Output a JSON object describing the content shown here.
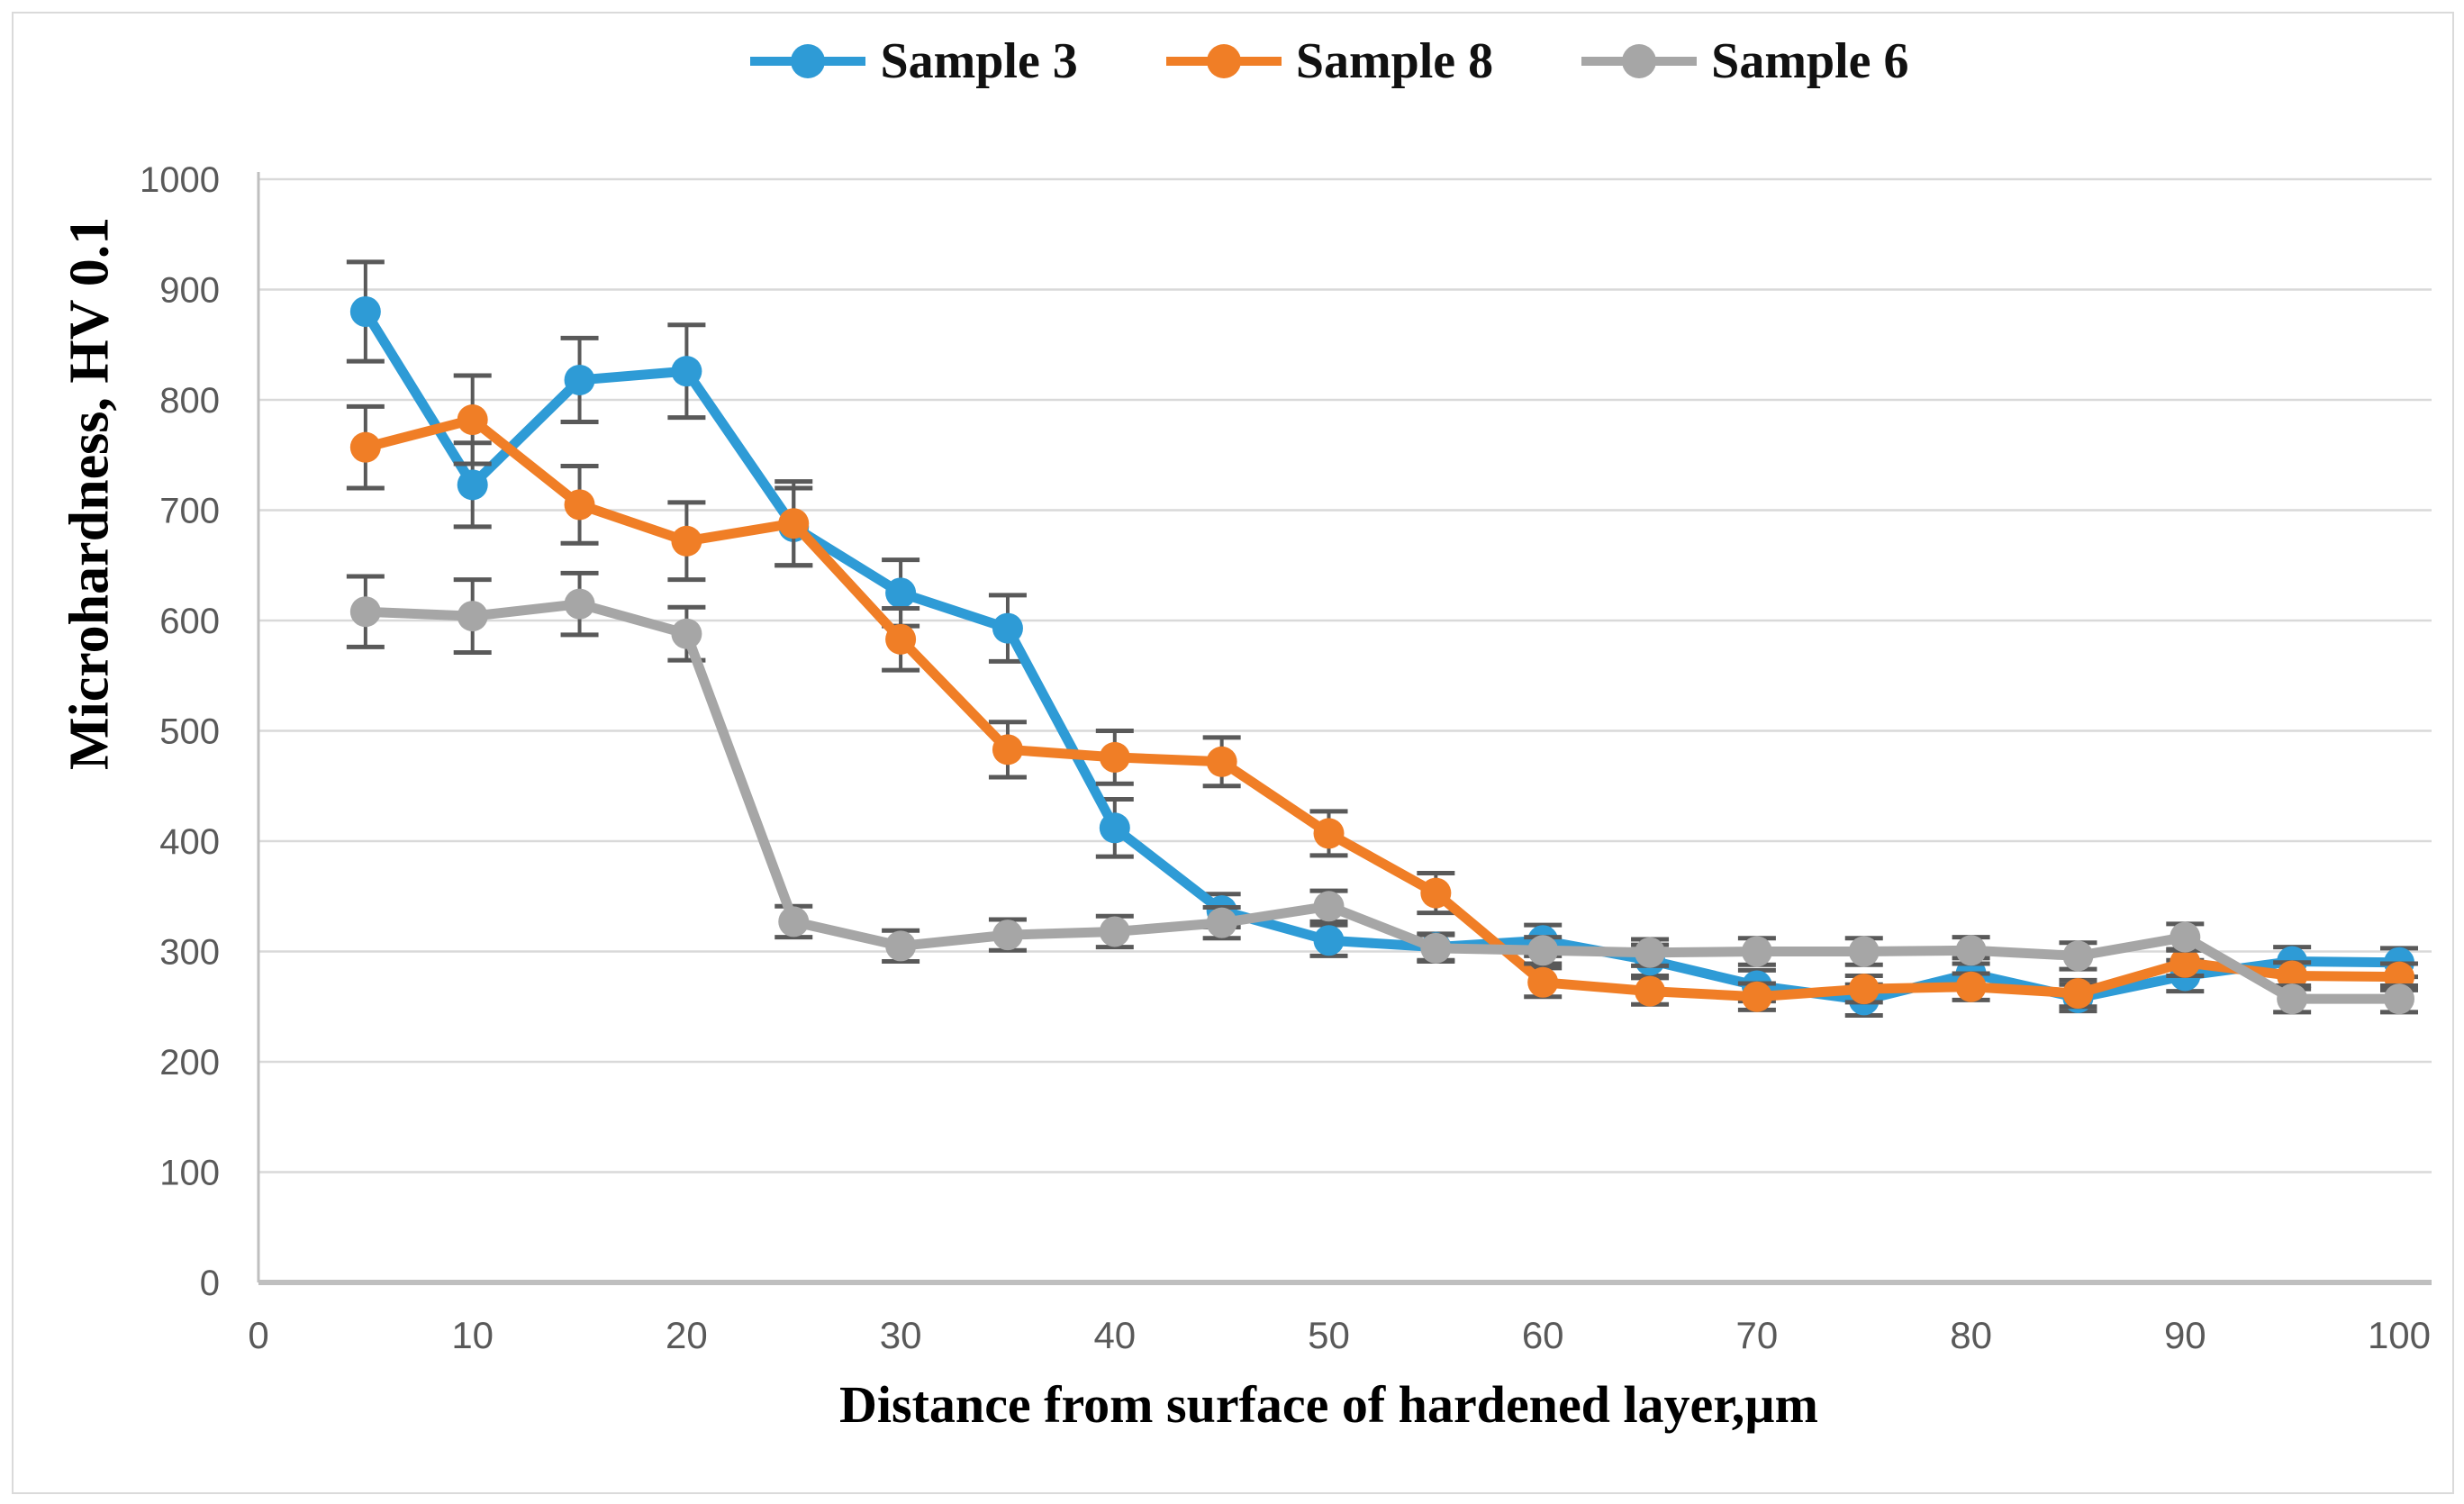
{
  "chart_data": {
    "type": "line",
    "title": "",
    "xlabel": "Distance from surface of hardened layer,µm",
    "ylabel": "Microhardness, HV 0.1",
    "xlim": [
      0,
      100
    ],
    "ylim": [
      0,
      1000
    ],
    "x_ticks": [
      0,
      10,
      20,
      30,
      40,
      50,
      60,
      70,
      80,
      90,
      100
    ],
    "y_ticks": [
      0,
      100,
      200,
      300,
      400,
      500,
      600,
      700,
      800,
      900,
      1000
    ],
    "grid": "horizontal",
    "legend_position": "top-center",
    "error_bars": true,
    "x": [
      5,
      10,
      15,
      20,
      25,
      30,
      35,
      40,
      45,
      50,
      55,
      60,
      65,
      70,
      75,
      80,
      85,
      90,
      95,
      100
    ],
    "series": [
      {
        "name": "Sample 3",
        "color": "#2E9BD6",
        "values": [
          880,
          723,
          818,
          826,
          685,
          625,
          593,
          412,
          337,
          310,
          304,
          310,
          292,
          269,
          256,
          280,
          258,
          278,
          291,
          290
        ],
        "errors": [
          45,
          38,
          38,
          42,
          35,
          30,
          30,
          26,
          15,
          14,
          12,
          14,
          14,
          14,
          14,
          14,
          12,
          14,
          13,
          13
        ]
      },
      {
        "name": "Sample 8",
        "color": "#F07E26",
        "values": [
          757,
          782,
          705,
          672,
          688,
          583,
          483,
          476,
          472,
          407,
          353,
          272,
          264,
          259,
          266,
          268,
          262,
          290,
          278,
          277
        ],
        "errors": [
          37,
          40,
          35,
          35,
          38,
          28,
          25,
          24,
          22,
          20,
          18,
          13,
          12,
          12,
          12,
          12,
          12,
          12,
          12,
          12
        ]
      },
      {
        "name": "Sample 6",
        "color": "#A6A6A6",
        "values": [
          608,
          604,
          615,
          588,
          327,
          305,
          315,
          318,
          326,
          341,
          303,
          301,
          299,
          300,
          300,
          301,
          296,
          313,
          257,
          257
        ],
        "errors": [
          32,
          33,
          28,
          24,
          14,
          14,
          14,
          14,
          14,
          14,
          12,
          12,
          12,
          12,
          12,
          12,
          12,
          12,
          12,
          12
        ]
      }
    ],
    "style_colors": {
      "gridline": "#D9D9D9",
      "axis_line": "#BFBFBF",
      "error_bar": "#595959",
      "tick_text": "#595959"
    }
  }
}
